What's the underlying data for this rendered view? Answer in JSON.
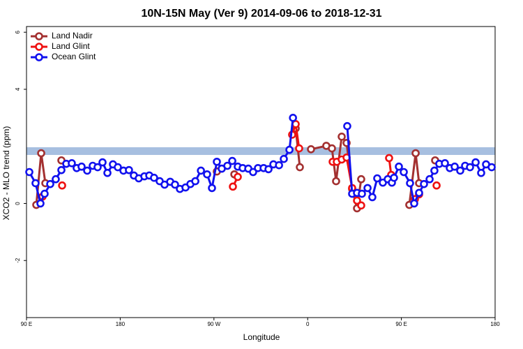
{
  "chart_data": {
    "type": "line",
    "title": "10N-15N May (Ver 9)   2014-09-06 to 2018-12-31",
    "x_label": "Longitude",
    "y_label": "XCO2 - MLO trend (ppm)",
    "xlim": [
      90,
      540
    ],
    "ylim": [
      -4.0,
      6.2
    ],
    "xticks": [
      {
        "value": 90,
        "label": "90 E"
      },
      180,
      {
        "value": 270,
        "label": "90 W"
      },
      {
        "value": 360,
        "label": "0"
      },
      {
        "value": 450,
        "label": "90 E"
      },
      {
        "value": 540,
        "label": "180"
      }
    ],
    "yticks": [
      -2,
      0,
      4,
      6
    ],
    "band": [
      1.7,
      1.97
    ],
    "band_color": "#a7bfe0",
    "legend": "top-left",
    "series": [
      {
        "name": "Land Nadir",
        "color": "#a33030",
        "x": [
          99.4,
          104.1,
          108.1,
          null,
          123.5,
          null,
          272.8,
          null,
          289.6,
          null,
          348.5,
          352.5,
          null,
          363.2,
          377.9,
          383.3,
          387.3,
          392.7,
          397.4,
          402.7,
          407.4,
          411.4,
          null,
          457.6,
          463.7,
          467.0,
          null,
          482.4
        ],
        "values": [
          -0.05,
          1.76,
          0.71,
          null,
          1.51,
          null,
          1.12,
          null,
          1.02,
          null,
          2.63,
          1.27,
          null,
          1.9,
          2.02,
          1.93,
          0.78,
          2.34,
          2.12,
          0.51,
          -0.17,
          0.85,
          null,
          -0.05,
          1.76,
          0.71,
          null,
          1.51
        ]
      },
      {
        "name": "Land Glint",
        "color": "#ee1111",
        "x": [
          105.4,
          null,
          124.2,
          null,
          288.2,
          292.9,
          null,
          345.1,
          348.5,
          351.8,
          null,
          384.0,
          388.0,
          392.7,
          397.4,
          402.7,
          407.4,
          411.4,
          null,
          438.2,
          440.2,
          null,
          463.0,
          467.0,
          null,
          483.8
        ],
        "values": [
          0.24,
          null,
          0.63,
          null,
          0.59,
          0.93,
          null,
          2.41,
          2.78,
          1.93,
          null,
          1.46,
          1.46,
          1.54,
          1.61,
          0.54,
          0.1,
          -0.07,
          null,
          1.59,
          1.0,
          null,
          0.15,
          0.32,
          null,
          0.63
        ]
      },
      {
        "name": "Ocean Glint",
        "color": "#1111ee",
        "x": [
          92.7,
          98.7,
          103.4,
          107.4,
          112.8,
          118.1,
          123.5,
          128.2,
          133.5,
          138.2,
          142.9,
          148.3,
          153.6,
          158.3,
          163.0,
          167.7,
          173.0,
          177.7,
          183.1,
          188.4,
          193.1,
          197.8,
          203.2,
          207.9,
          212.5,
          217.9,
          222.6,
          228.0,
          232.6,
          237.3,
          242.7,
          247.4,
          252.1,
          257.5,
          263.4,
          268.1,
          272.8,
          277.5,
          282.9,
          287.6,
          292.9,
          297.6,
          303.0,
          307.6,
          312.3,
          317.7,
          322.4,
          327.1,
          332.5,
          337.1,
          342.5,
          345.9,
          null,
          398.0,
          402.7,
          407.4,
          412.1,
          417.5,
          422.1,
          426.8,
          432.2,
          436.9,
          440.9,
          442.9,
          447.6,
          452.3,
          458.3,
          462.3,
          467.0,
          471.7,
          477.1,
          481.7,
          486.4,
          491.8,
          496.5,
          501.2,
          506.5,
          511.2,
          515.9,
          521.3,
          526.6,
          531.3,
          536.7
        ],
        "values": [
          1.1,
          0.71,
          0,
          0.34,
          0.68,
          0.85,
          1.17,
          1.39,
          1.41,
          1.24,
          1.29,
          1.15,
          1.32,
          1.27,
          1.44,
          1.07,
          1.37,
          1.27,
          1.15,
          1.17,
          0.98,
          0.88,
          0.95,
          0.98,
          0.9,
          0.78,
          0.66,
          0.76,
          0.66,
          0.51,
          0.56,
          0.68,
          0.78,
          1.15,
          1.02,
          0.54,
          1.46,
          1.22,
          1.32,
          1.49,
          1.29,
          1.24,
          1.22,
          1.1,
          1.24,
          1.24,
          1.2,
          1.37,
          1.34,
          1.56,
          1.88,
          3.0,
          null,
          2.71,
          0.34,
          0.37,
          0.34,
          0.54,
          0.22,
          0.88,
          0.73,
          0.85,
          0.73,
          0.9,
          1.29,
          1.1,
          0.71,
          0,
          0.37,
          0.68,
          0.85,
          1.15,
          1.39,
          1.41,
          1.24,
          1.29,
          1.15,
          1.32,
          1.27,
          1.44,
          1.07,
          1.37,
          1.27
        ]
      }
    ]
  }
}
